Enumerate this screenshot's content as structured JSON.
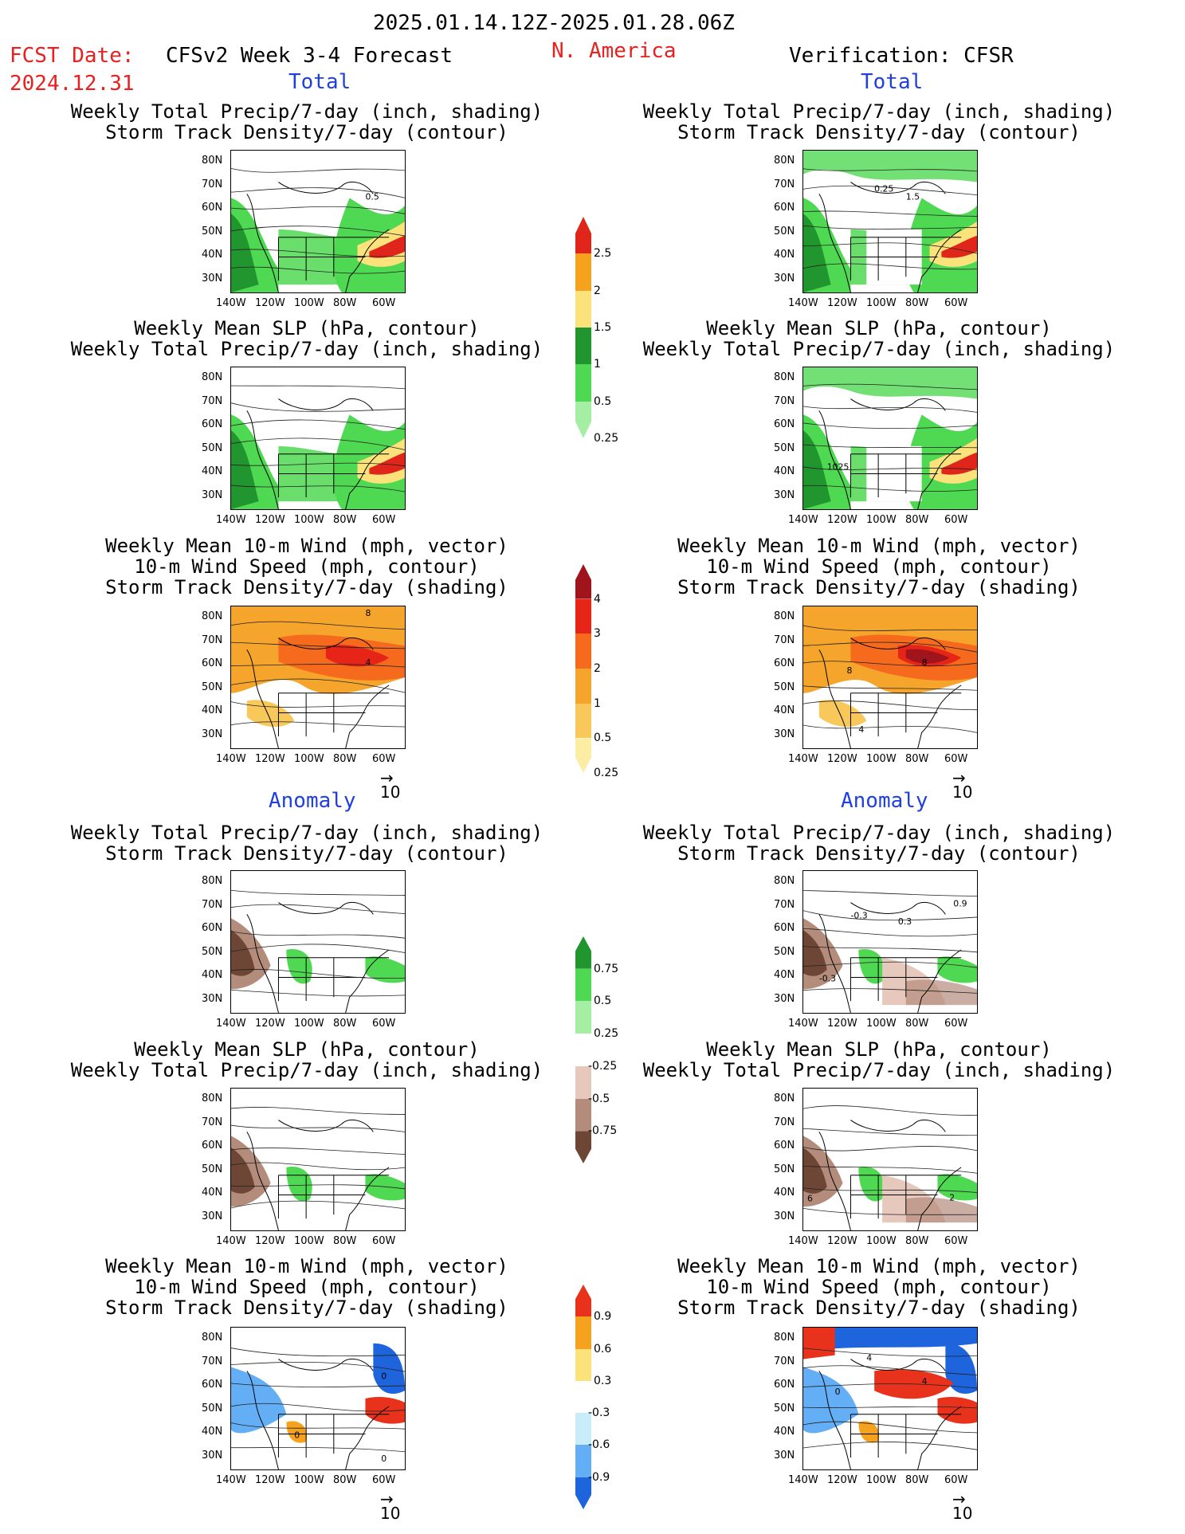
{
  "header": {
    "date_range": "2025.01.14.12Z-2025.01.28.06Z",
    "fcst_label": "FCST Date:",
    "fcst_date": "2024.12.31",
    "model_title": "CFSv2 Week 3-4 Forecast",
    "region": "N. America",
    "verification": "Verification: CFSR"
  },
  "sections": {
    "total": "Total",
    "anomaly": "Anomaly"
  },
  "panel_titles": {
    "precip_storm": [
      "Weekly Total Precip/7-day (inch, shading)",
      "Storm Track Density/7-day (contour)"
    ],
    "slp_precip": [
      "Weekly Mean SLP (hPa, contour)",
      "Weekly Total Precip/7-day (inch, shading)"
    ],
    "wind_storm": [
      "Weekly Mean 10-m Wind (mph, vector)",
      "10-m Wind Speed (mph, contour)",
      "Storm Track Density/7-day (shading)"
    ]
  },
  "axes": {
    "lat_ticks": [
      "80N",
      "70N",
      "60N",
      "50N",
      "40N",
      "30N"
    ],
    "lon_ticks": [
      "140W",
      "120W",
      "100W",
      "80W",
      "60W"
    ]
  },
  "vector_ref": "10",
  "map_labels": {
    "t_precip_fcst": [
      "0.5"
    ],
    "t_precip_ver": [
      "0.25",
      "1.5"
    ],
    "t_slp_ver": [
      "1025"
    ],
    "t_wind_fcst": [
      "4",
      "8"
    ],
    "t_wind_ver": [
      "8",
      "8",
      "4"
    ],
    "a_precip_ver": [
      "-0.3",
      "0.3",
      "0.9",
      "-0.3"
    ],
    "a_slp_ver": [
      "6",
      "2"
    ],
    "a_wind_fcst": [
      "0",
      "0",
      "0"
    ],
    "a_wind_ver": [
      "4",
      "4",
      "0"
    ]
  },
  "colorbars": {
    "precip_total": {
      "labels": [
        "2.5",
        "2",
        "1.5",
        "1",
        "0.5",
        "0.25"
      ],
      "colors": [
        "#e0261a",
        "#f5a21e",
        "#fbe27a",
        "#21962e",
        "#4fd851",
        "#a5efa5"
      ]
    },
    "storm_total": {
      "labels": [
        "4",
        "3",
        "2",
        "1",
        "0.5",
        "0.25"
      ],
      "colors": [
        "#a0141c",
        "#e62418",
        "#f56a1c",
        "#f5a52c",
        "#f8c85a",
        "#fbeda4"
      ]
    },
    "precip_anom": {
      "labels": [
        "0.75",
        "0.5",
        "0.25",
        "-0.25",
        "-0.5",
        "-0.75"
      ],
      "colors": [
        "#21962e",
        "#4fd851",
        "#a5efa5",
        "#ffffff",
        "#e6c8bc",
        "#b48c7c",
        "#6e4636"
      ]
    },
    "storm_anom": {
      "labels": [
        "0.9",
        "0.6",
        "0.3",
        "-0.3",
        "-0.6",
        "-0.9"
      ],
      "colors": [
        "#e8321c",
        "#f5a21e",
        "#fbe27a",
        "#ffffff",
        "#c8ecfa",
        "#64aef5",
        "#1e64dc"
      ]
    }
  }
}
